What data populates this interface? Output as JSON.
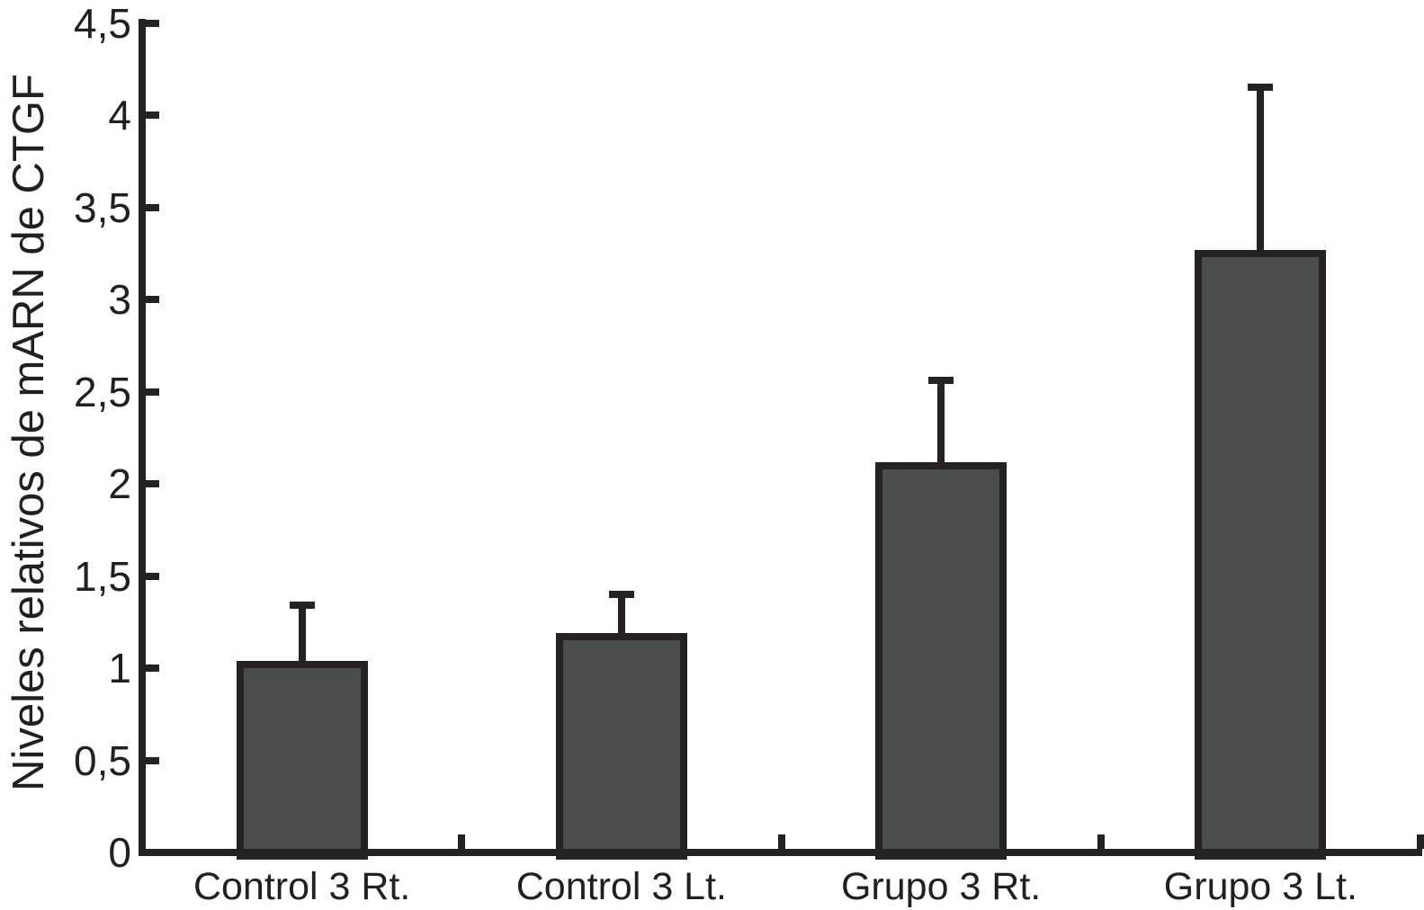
{
  "colors": {
    "bar_fill": "#4b4c4e",
    "ink": "#262223",
    "text": "#231f20",
    "background": "#ffffff"
  },
  "chart_data": {
    "type": "bar",
    "categories": [
      "Control 3 Rt.",
      "Control 3 Lt.",
      "Grupo 3 Rt.",
      "Grupo 3 Lt."
    ],
    "values": [
      1.02,
      1.17,
      2.1,
      3.25
    ],
    "errors_upper": [
      0.32,
      0.23,
      0.46,
      0.9
    ],
    "title": "",
    "xlabel": "",
    "ylabel": "Niveles relativos de mARN de CTGF",
    "ylim": [
      0,
      4.5
    ],
    "ytick_values": [
      0,
      0.5,
      1,
      1.5,
      2,
      2.5,
      3,
      3.5,
      4,
      4.5
    ],
    "ytick_labels": [
      "0",
      "0,5",
      "1",
      "1,5",
      "2",
      "2,5",
      "3",
      "3,5",
      "4",
      "4,5"
    ],
    "grid": false,
    "legend": false,
    "decimal_separator": ",",
    "error_bars": "upper-only"
  }
}
